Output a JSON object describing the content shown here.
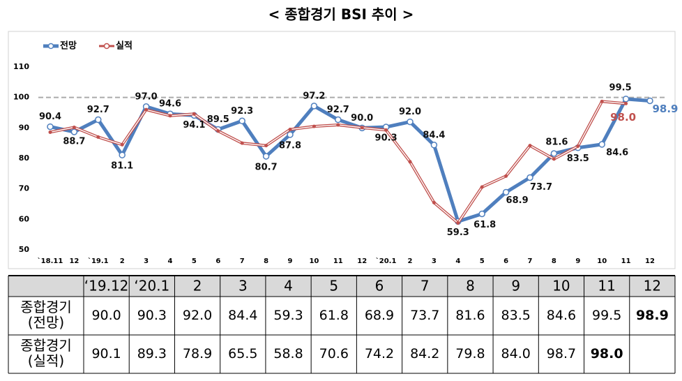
{
  "chart_data": {
    "type": "line",
    "title": "< 종합경기 BSI 추이 >",
    "categories": [
      "`18.11",
      "12",
      "`19.1",
      "2",
      "3",
      "4",
      "5",
      "6",
      "7",
      "8",
      "9",
      "10",
      "11",
      "12",
      "`20.1",
      "2",
      "3",
      "4",
      "5",
      "6",
      "7",
      "8",
      "9",
      "10",
      "11",
      "12"
    ],
    "series": [
      {
        "name": "전망",
        "color": "#4f7fbe",
        "values": [
          90.4,
          88.7,
          92.7,
          81.1,
          97.0,
          94.6,
          94.1,
          89.5,
          92.3,
          80.7,
          87.8,
          97.2,
          92.7,
          90.0,
          90.3,
          92.0,
          84.4,
          59.3,
          61.8,
          68.9,
          73.7,
          81.6,
          83.5,
          84.6,
          99.5,
          98.9
        ],
        "value_labels": [
          "90.4",
          "88.7",
          "92.7",
          "81.1",
          "97.0",
          "94.6",
          "94.1",
          "89.5",
          "92.3",
          "80.7",
          "87.8",
          "97.2",
          "92.7",
          "90.0",
          "90.3",
          "92.0",
          "84.4",
          "59.3",
          "61.8",
          "68.9",
          "73.7",
          "81.6",
          "83.5",
          "84.6",
          "99.5",
          "98.9"
        ]
      },
      {
        "name": "실적",
        "color": "#c0504d",
        "values": [
          88.6,
          90.2,
          87.0,
          84.5,
          96.0,
          94.0,
          94.6,
          89.0,
          85.0,
          84.2,
          89.5,
          90.5,
          91.0,
          90.1,
          89.3,
          78.9,
          65.5,
          58.8,
          70.6,
          74.2,
          84.2,
          79.8,
          84.0,
          98.7,
          98.0,
          null
        ],
        "value_labels": [
          null,
          null,
          null,
          null,
          null,
          null,
          null,
          null,
          null,
          null,
          null,
          null,
          null,
          null,
          null,
          null,
          null,
          null,
          null,
          null,
          null,
          null,
          null,
          null,
          "98.0",
          null
        ]
      }
    ],
    "ylim": [
      50,
      110
    ],
    "yticks": [
      50,
      60,
      70,
      80,
      90,
      100,
      110
    ],
    "reference_line": 100,
    "legend": "top-left"
  },
  "table": {
    "header": [
      "‘19.12",
      "‘20.1",
      "2",
      "3",
      "4",
      "5",
      "6",
      "7",
      "8",
      "9",
      "10",
      "11",
      "12"
    ],
    "rows": [
      {
        "label": [
          "종합경기",
          "(전망)"
        ],
        "cells": [
          "90.0",
          "90.3",
          "92.0",
          "84.4",
          "59.3",
          "61.8",
          "68.9",
          "73.7",
          "81.6",
          "83.5",
          "84.6",
          "99.5",
          "98.9"
        ]
      },
      {
        "label": [
          "종합경기",
          "(실적)"
        ],
        "cells": [
          "90.1",
          "89.3",
          "78.9",
          "65.5",
          "58.8",
          "70.6",
          "74.2",
          "84.2",
          "79.8",
          "84.0",
          "98.7",
          "98.0"
        ]
      }
    ]
  }
}
